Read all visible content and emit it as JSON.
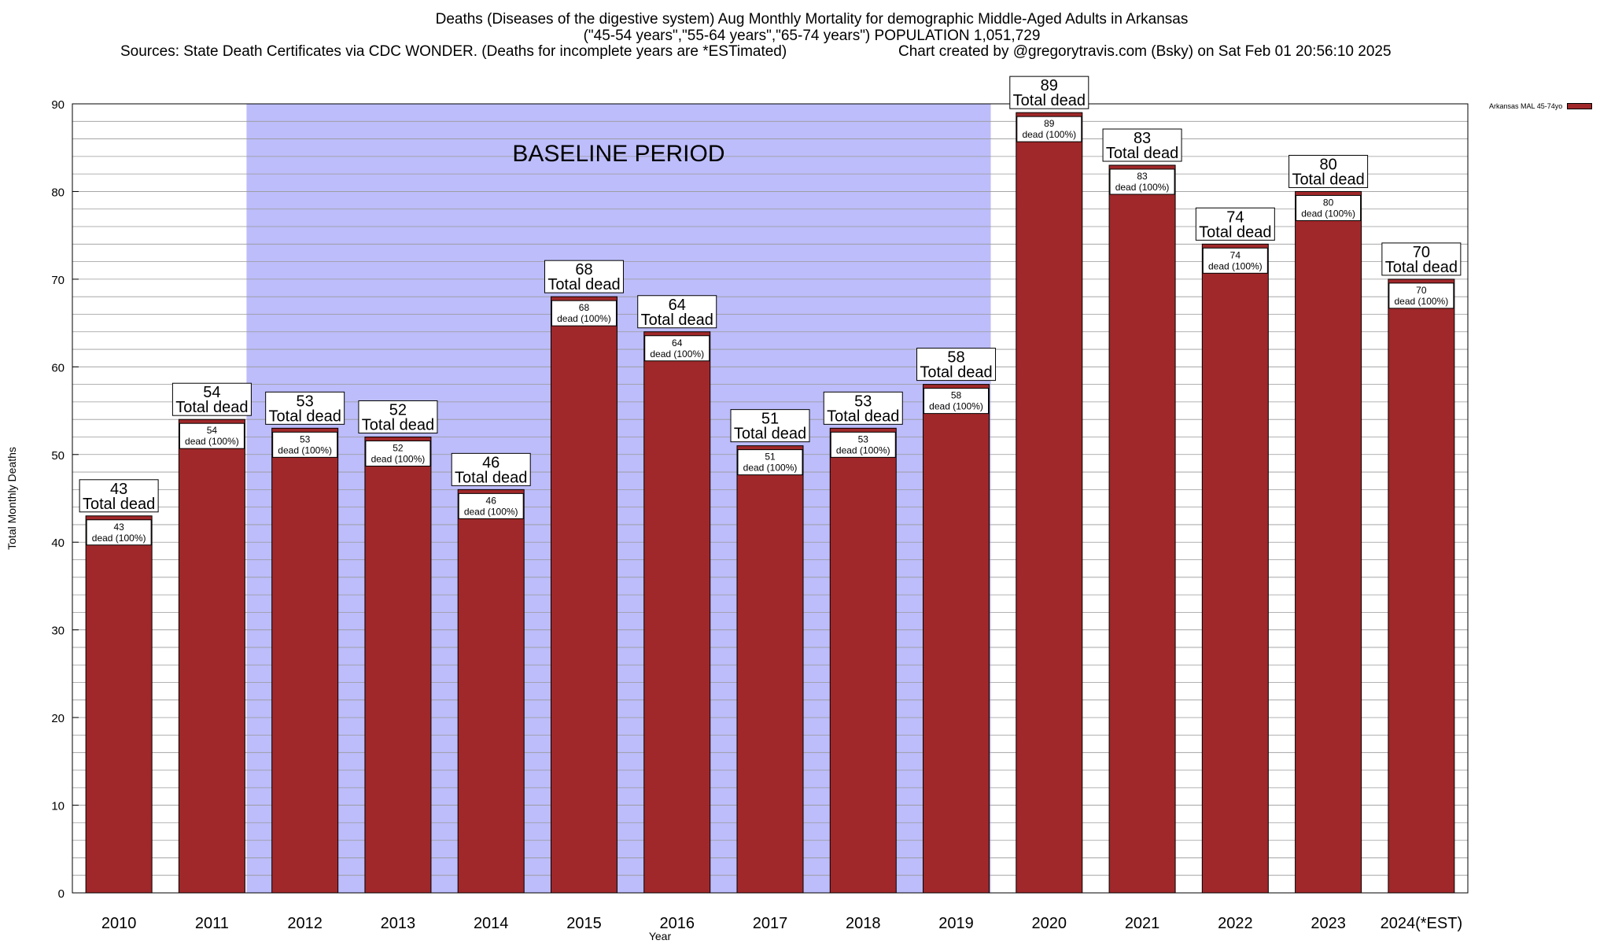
{
  "title": {
    "line1": "Deaths (Diseases of the digestive system) Aug Monthly Mortality for demographic Middle-Aged Adults in Arkansas",
    "line2": "(\"45-54 years\",\"55-64 years\",\"65-74 years\") POPULATION 1,051,729",
    "sources": "Sources: State Death Certificates via CDC WONDER. (Deaths for incomplete years are *ESTimated)",
    "credit": "Chart created by @gregorytravis.com (Bsky) on Sat Feb 01 20:56:10 2025"
  },
  "legend": {
    "label": "Arkansas MAL 45-74yo",
    "color": "#a0282a"
  },
  "chart_data": {
    "type": "bar",
    "title": "Deaths (Diseases of the digestive system) Aug Monthly Mortality for demographic Middle-Aged Adults in Arkansas",
    "xlabel": "Year",
    "ylabel": "Total Monthly Deaths",
    "ylim": [
      0,
      90
    ],
    "yticks": [
      0,
      10,
      20,
      30,
      40,
      50,
      60,
      70,
      80,
      90
    ],
    "grid": true,
    "legend_position": "top-right",
    "categories": [
      "2010",
      "2011",
      "2012",
      "2013",
      "2014",
      "2015",
      "2016",
      "2017",
      "2018",
      "2019",
      "2020",
      "2021",
      "2022",
      "2023",
      "2024(*EST)"
    ],
    "series": [
      {
        "name": "Arkansas MAL 45-74yo",
        "color": "#a0282a",
        "values": [
          43,
          54,
          53,
          52,
          46,
          68,
          64,
          51,
          53,
          58,
          89,
          83,
          74,
          80,
          70
        ]
      }
    ],
    "total_label_text": "Total dead",
    "inner_label_text": "dead (100%)",
    "baseline_period": {
      "label": "BASELINE PERIOD",
      "start": "2012",
      "end": "2019",
      "color": "#bdbdfb"
    }
  }
}
